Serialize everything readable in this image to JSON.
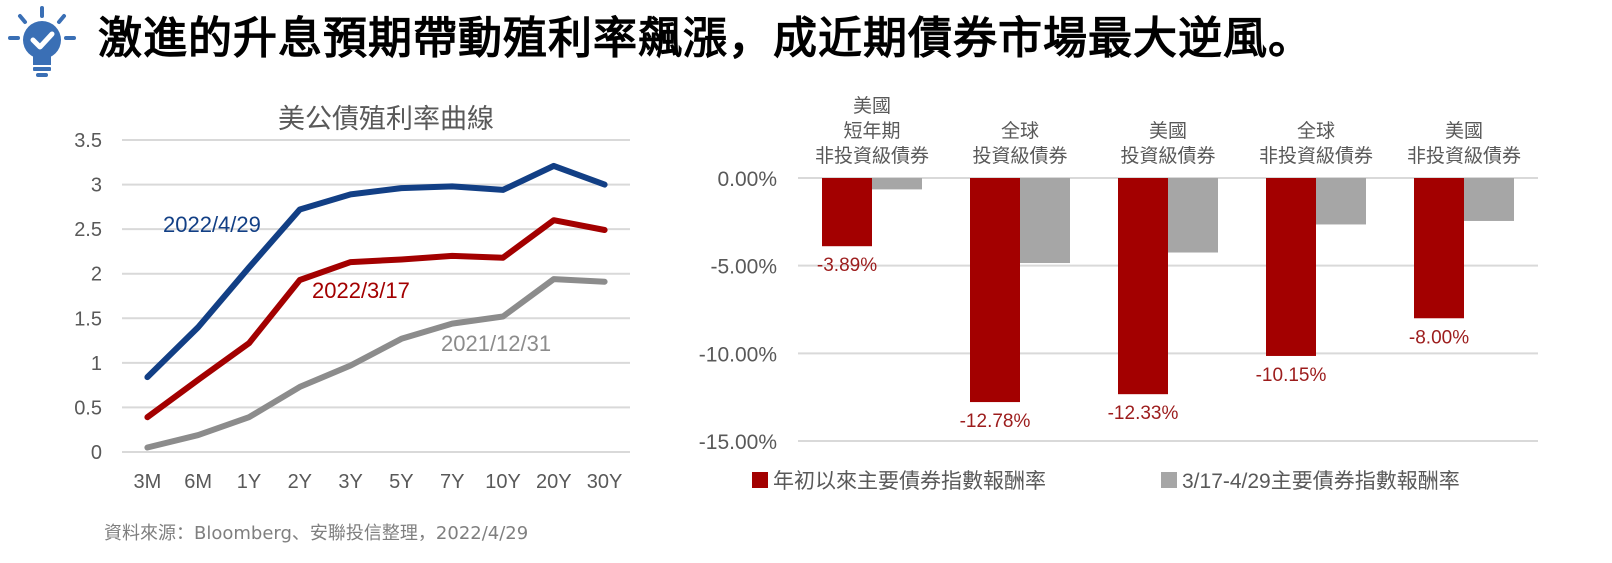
{
  "headline": "激進的升息預期帶動殖利率飆漲，成近期債券市場最大逆風。",
  "source": "資料來源：Bloomberg、安聯投信整理，2022/4/29",
  "icons": {
    "header": "lightbulb-check-icon"
  },
  "colors": {
    "navy": "#123f85",
    "red": "#a30000",
    "gray": "#8c8c8c",
    "bar_gray": "#a6a6a6",
    "grid": "#d9d9d9",
    "label_red": "#9c1c1c"
  },
  "chart_data": [
    {
      "type": "line",
      "title": "美公債殖利率曲線",
      "categories": [
        "3M",
        "6M",
        "1Y",
        "2Y",
        "3Y",
        "5Y",
        "7Y",
        "10Y",
        "20Y",
        "30Y"
      ],
      "y_ticks": [
        "0",
        "0.5",
        "1",
        "1.5",
        "2",
        "2.5",
        "3",
        "3.5"
      ],
      "ylim": [
        0,
        3.5
      ],
      "grid": true,
      "series": [
        {
          "name": "2022/4/29",
          "color": "#123f85",
          "values": [
            0.84,
            1.4,
            2.07,
            2.72,
            2.89,
            2.96,
            2.98,
            2.94,
            3.21,
            3.0
          ]
        },
        {
          "name": "2022/3/17",
          "color": "#a30000",
          "values": [
            0.39,
            0.81,
            1.22,
            1.93,
            2.13,
            2.16,
            2.2,
            2.18,
            2.6,
            2.49
          ]
        },
        {
          "name": "2021/12/31",
          "color": "#8c8c8c",
          "values": [
            0.05,
            0.19,
            0.39,
            0.73,
            0.97,
            1.27,
            1.44,
            1.52,
            1.94,
            1.91
          ]
        }
      ]
    },
    {
      "type": "bar",
      "categories": [
        [
          "美國",
          "短年期",
          "非投資級債券"
        ],
        [
          "全球",
          "投資級債券"
        ],
        [
          "美國",
          "投資級債券"
        ],
        [
          "全球",
          "非投資級債券"
        ],
        [
          "美國",
          "非投資級債券"
        ]
      ],
      "y_ticks": [
        "0.00%",
        "-5.00%",
        "-10.00%",
        "-15.00%"
      ],
      "ylim": [
        -15,
        0
      ],
      "grid": true,
      "legend_position": "bottom",
      "series": [
        {
          "name": "年初以來主要債券指數報酬率",
          "color": "#a30000",
          "values": [
            -3.89,
            -12.78,
            -12.33,
            -10.15,
            -8.0
          ],
          "labels": [
            "-3.89%",
            "-12.78%",
            "-12.33%",
            "-10.15%",
            "-8.00%"
          ]
        },
        {
          "name": "3/17-4/29主要債券指數報酬率",
          "color": "#a6a6a6",
          "values": [
            -0.65,
            -4.85,
            -4.25,
            -2.65,
            -2.45
          ]
        }
      ]
    }
  ]
}
